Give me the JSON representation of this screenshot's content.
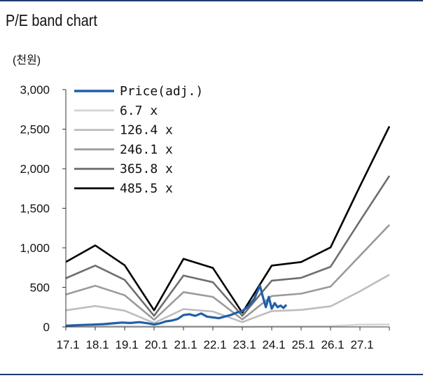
{
  "chart_data": {
    "type": "line",
    "title": "P/E band chart",
    "unit_label": "(천원)",
    "xlabel": "",
    "ylabel": "",
    "x_ticks": [
      "17.1",
      "18.1",
      "19.1",
      "20.1",
      "21.1",
      "22.1",
      "23.1",
      "24.1",
      "25.1",
      "26.1",
      "27.1"
    ],
    "xlim": [
      2017.0,
      2028.0
    ],
    "ylim": [
      0,
      3000
    ],
    "y_ticks": [
      {
        "value": 0,
        "label": "0"
      },
      {
        "value": 500,
        "label": "500"
      },
      {
        "value": 1000,
        "label": "1,000"
      },
      {
        "value": 1500,
        "label": "1,500"
      },
      {
        "value": 2000,
        "label": "2,000"
      },
      {
        "value": 2500,
        "label": "2,500"
      },
      {
        "value": 3000,
        "label": "3,000"
      }
    ],
    "grid": false,
    "legend_position": "top-left",
    "band_dates": [
      2017.0,
      2018.0,
      2019.0,
      2020.0,
      2021.0,
      2022.0,
      2023.0,
      2024.0,
      2025.0,
      2026.0,
      2027.0,
      2028.0
    ],
    "series": [
      {
        "name": "Price(adj.)",
        "color": "#1f5fa8",
        "x": [
          2017.0,
          2017.3,
          2017.6,
          2018.0,
          2018.3,
          2018.6,
          2018.9,
          2019.2,
          2019.5,
          2019.8,
          2020.0,
          2020.2,
          2020.4,
          2020.6,
          2020.8,
          2021.0,
          2021.2,
          2021.4,
          2021.6,
          2021.8,
          2022.0,
          2022.2,
          2022.4,
          2022.6,
          2022.8,
          2023.0,
          2023.2,
          2023.4,
          2023.6,
          2023.7,
          2023.8,
          2023.9,
          2024.0,
          2024.1,
          2024.2,
          2024.3,
          2024.4,
          2024.5
        ],
        "y": [
          15,
          20,
          25,
          30,
          35,
          45,
          55,
          50,
          60,
          45,
          30,
          45,
          70,
          80,
          100,
          150,
          160,
          140,
          170,
          130,
          120,
          110,
          130,
          150,
          180,
          200,
          260,
          350,
          520,
          380,
          250,
          380,
          230,
          300,
          250,
          270,
          240,
          280
        ]
      },
      {
        "name": "6.7 x",
        "color": "#d4d4d4",
        "y": [
          10,
          12,
          10,
          5,
          10,
          9,
          3,
          7,
          9,
          11,
          28,
          30
        ]
      },
      {
        "name": "126.4 x",
        "color": "#bdbdbd",
        "y": [
          210,
          265,
          205,
          50,
          225,
          195,
          60,
          200,
          215,
          260,
          450,
          660
        ]
      },
      {
        "name": "246.1 x",
        "color": "#9a9a9a",
        "y": [
          410,
          520,
          400,
          90,
          440,
          380,
          95,
          390,
          420,
          510,
          900,
          1290
        ]
      },
      {
        "name": "365.8 x",
        "color": "#6e6e6e",
        "y": [
          615,
          775,
          595,
          140,
          650,
          565,
          140,
          585,
          620,
          760,
          1340,
          1910
        ]
      },
      {
        "name": "485.5 x",
        "color": "#000000",
        "y": [
          820,
          1030,
          780,
          210,
          860,
          745,
          180,
          775,
          820,
          1005,
          1780,
          2535
        ]
      }
    ]
  }
}
